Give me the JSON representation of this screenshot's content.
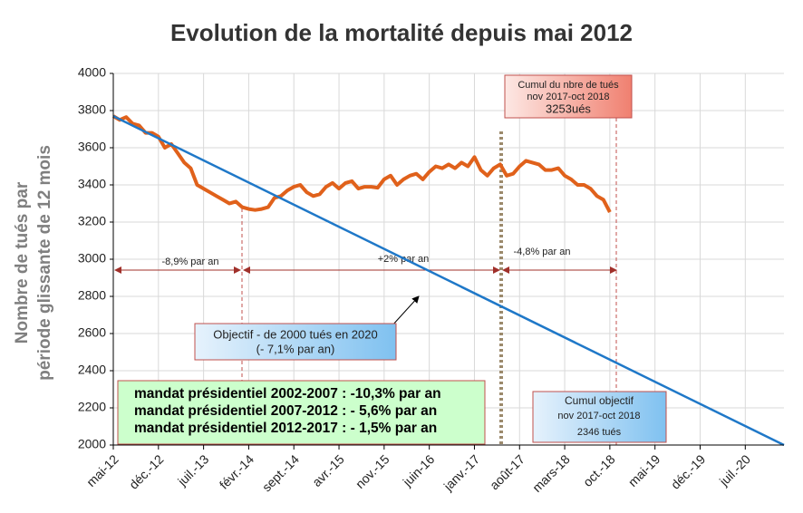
{
  "chart_data": {
    "type": "line",
    "title": "Evolution de la mortalité depuis mai 2012",
    "ylabel": [
      "Nombre de tués par",
      "période  glissante de 12 mois"
    ],
    "xlim": [
      0,
      104
    ],
    "ylim": [
      2000,
      4000
    ],
    "xticks": [
      {
        "value": 0,
        "label": "mai-12"
      },
      {
        "value": 7,
        "label": "déc.-12"
      },
      {
        "value": 14,
        "label": "juil.-13"
      },
      {
        "value": 21,
        "label": "févr.-14"
      },
      {
        "value": 28,
        "label": "sept.-14"
      },
      {
        "value": 35,
        "label": "avr.-15"
      },
      {
        "value": 42,
        "label": "nov.-15"
      },
      {
        "value": 49,
        "label": "juin-16"
      },
      {
        "value": 56,
        "label": "janv.-17"
      },
      {
        "value": 63,
        "label": "août-17"
      },
      {
        "value": 70,
        "label": "mars-18"
      },
      {
        "value": 77,
        "label": "oct.-18"
      },
      {
        "value": 84,
        "label": "mai-19"
      },
      {
        "value": 91,
        "label": "déc.-19"
      },
      {
        "value": 98,
        "label": "juil.-20"
      }
    ],
    "yticks": [
      2000,
      2200,
      2400,
      2600,
      2800,
      3000,
      3200,
      3400,
      3600,
      3800,
      4000
    ],
    "grid": true,
    "series": [
      {
        "color": "#e0611b",
        "x": [
          0,
          1,
          2,
          3,
          4,
          5,
          6,
          7,
          8,
          9,
          10,
          11,
          12,
          13,
          14,
          15,
          16,
          17,
          18,
          19,
          20,
          21,
          22,
          23,
          24,
          25,
          26,
          27,
          28,
          29,
          30,
          31,
          32,
          33,
          34,
          35,
          36,
          37,
          38,
          39,
          40,
          41,
          42,
          43,
          44,
          45,
          46,
          47,
          48,
          49,
          50,
          51,
          52,
          53,
          54,
          55,
          56,
          57,
          58,
          59,
          60,
          61,
          62,
          63,
          64,
          65,
          66,
          67,
          68,
          69,
          70,
          71,
          72,
          73,
          74,
          75,
          76,
          77
        ],
        "values": [
          3770,
          3750,
          3765,
          3730,
          3720,
          3680,
          3680,
          3660,
          3600,
          3620,
          3570,
          3520,
          3490,
          3400,
          3380,
          3360,
          3340,
          3320,
          3300,
          3310,
          3280,
          3270,
          3265,
          3270,
          3280,
          3330,
          3340,
          3370,
          3390,
          3400,
          3360,
          3340,
          3350,
          3390,
          3410,
          3380,
          3410,
          3420,
          3380,
          3390,
          3390,
          3385,
          3430,
          3450,
          3400,
          3430,
          3450,
          3460,
          3430,
          3470,
          3500,
          3490,
          3510,
          3490,
          3520,
          3500,
          3550,
          3480,
          3450,
          3490,
          3510,
          3450,
          3460,
          3500,
          3530,
          3520,
          3510,
          3480,
          3480,
          3490,
          3450,
          3430,
          3400,
          3400,
          3380,
          3340,
          3320,
          3253
        ]
      },
      {
        "color": "#1f78c8",
        "x": [
          0,
          104
        ],
        "values": [
          3770,
          2000
        ]
      }
    ],
    "annotations": {
      "cumul": [
        "Cumul du nbre de tués",
        "nov 2017-oct 2018",
        "3253ués"
      ],
      "objectif": [
        "Objectif - de 2000 tués en 2020",
        "(- 7,1% par an)"
      ],
      "cumul_objectif": [
        "Cumul objectif",
        "nov 2017-oct 2018",
        "2346 tués"
      ],
      "rates": [
        "-8,9% par an",
        "+2% par an",
        "-4,8% par an"
      ],
      "mandats": [
        "mandat présidentiel 2002-2007 : -10,3% par an",
        "mandat présidentiel 2007-2012 : - 5,6% par an",
        "mandat présidentiel 2012-2017 : - 1,5% par an"
      ]
    }
  }
}
